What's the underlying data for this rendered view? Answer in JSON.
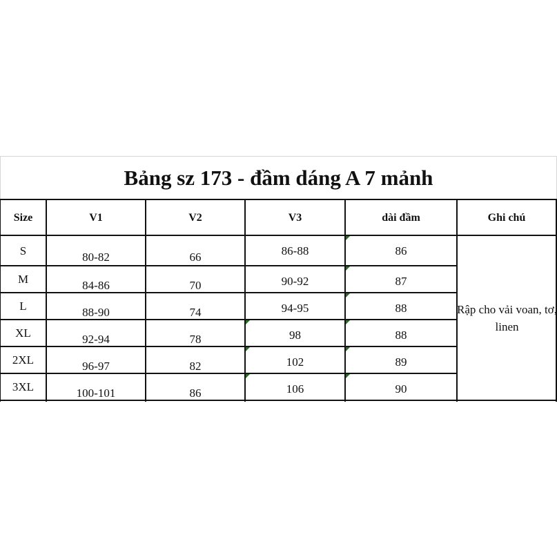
{
  "title": "Bảng sz 173 - đầm dáng A 7 mảnh",
  "headers": [
    "Size",
    "V1",
    "V2",
    "V3",
    "dài đầm",
    "Ghi chú"
  ],
  "rows": [
    {
      "size": "S",
      "v1": "80-82",
      "v2": "66",
      "v3": "86-88",
      "length": "86"
    },
    {
      "size": "M",
      "v1": "84-86",
      "v2": "70",
      "v3": "90-92",
      "length": "87"
    },
    {
      "size": "L",
      "v1": "88-90",
      "v2": "74",
      "v3": "94-95",
      "length": "88"
    },
    {
      "size": "XL",
      "v1": "92-94",
      "v2": "78",
      "v3": "98",
      "length": "88"
    },
    {
      "size": "2XL",
      "v1": "96-97",
      "v2": "82",
      "v3": "102",
      "length": "89"
    },
    {
      "size": "3XL",
      "v1": "100-101",
      "v2": "86",
      "v3": "106",
      "length": "90"
    }
  ],
  "note": "Rập cho vải voan, tơ, linen",
  "marker_color": "#2e6b2a"
}
